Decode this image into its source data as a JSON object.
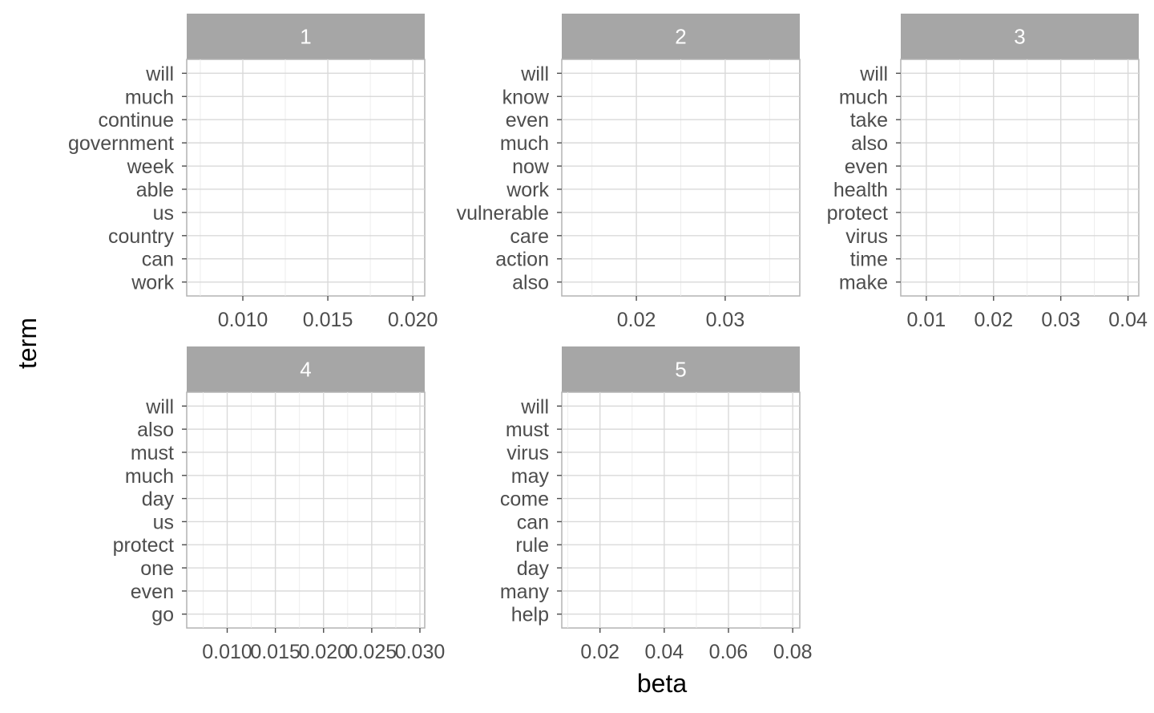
{
  "chart_data": {
    "type": "bar",
    "xlabel": "beta",
    "ylabel": "term",
    "facets": [
      {
        "strip_label": "1",
        "terms": [
          "will",
          "much",
          "continue",
          "government",
          "week",
          "able",
          "us",
          "country",
          "can",
          "work"
        ],
        "values": [],
        "xlim": [
          0.0067,
          0.0207
        ],
        "xticks": [
          0.01,
          0.015,
          0.02
        ],
        "xtick_labels": [
          "0.010",
          "0.015",
          "0.020"
        ]
      },
      {
        "strip_label": "2",
        "terms": [
          "will",
          "know",
          "even",
          "much",
          "now",
          "work",
          "vulnerable",
          "care",
          "action",
          "also"
        ],
        "values": [],
        "xlim": [
          0.0116,
          0.0384
        ],
        "xticks": [
          0.02,
          0.03
        ],
        "xtick_labels": [
          "0.02",
          "0.03"
        ]
      },
      {
        "strip_label": "3",
        "terms": [
          "will",
          "much",
          "take",
          "also",
          "even",
          "health",
          "protect",
          "virus",
          "time",
          "make"
        ],
        "values": [],
        "xlim": [
          0.0062,
          0.0416
        ],
        "xticks": [
          0.01,
          0.02,
          0.03,
          0.04
        ],
        "xtick_labels": [
          "0.01",
          "0.02",
          "0.03",
          "0.04"
        ]
      },
      {
        "strip_label": "4",
        "terms": [
          "will",
          "also",
          "must",
          "much",
          "day",
          "us",
          "protect",
          "one",
          "even",
          "go"
        ],
        "values": [],
        "xlim": [
          0.0058,
          0.0305
        ],
        "xticks": [
          0.01,
          0.015,
          0.02,
          0.025,
          0.03
        ],
        "xtick_labels": [
          "0.010",
          "0.015",
          "0.020",
          "0.025",
          "0.030"
        ]
      },
      {
        "strip_label": "5",
        "terms": [
          "will",
          "must",
          "virus",
          "may",
          "come",
          "can",
          "rule",
          "day",
          "many",
          "help"
        ],
        "values": [],
        "xlim": [
          0.0081,
          0.0822
        ],
        "xticks": [
          0.02,
          0.04,
          0.06,
          0.08
        ],
        "xtick_labels": [
          "0.02",
          "0.04",
          "0.06",
          "0.08"
        ]
      }
    ],
    "grid": true,
    "legend": "none",
    "colors": {
      "strip": "#a6a6a6",
      "strip_text": "#ffffff",
      "grid_major": "#d9d9d9",
      "grid_minor": "#ebebeb",
      "panel_border": "#b3b3b3",
      "tick_text": "#4d4d4d",
      "title_text": "#000000"
    }
  }
}
